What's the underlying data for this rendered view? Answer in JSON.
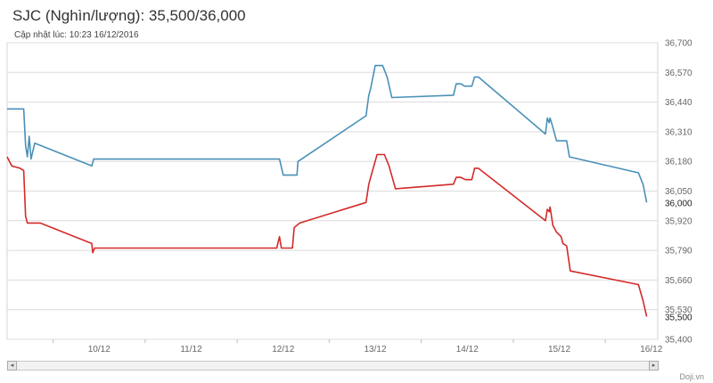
{
  "header": {
    "title": "SJC (Nghìn/lượng): 35,500/36,000",
    "updated": "Cập nhật lúc: 10:23 16/12/2016"
  },
  "brand": "Doji.vn",
  "scroll": {
    "left_icon": "◂",
    "right_icon": "▸"
  },
  "chart_data": {
    "type": "line",
    "title": "SJC (Nghìn/lượng): 35,500/36,000",
    "xlabel": "",
    "ylabel": "",
    "x_ticks": [
      "10/12",
      "11/12",
      "12/12",
      "13/12",
      "14/12",
      "15/12",
      "16/12"
    ],
    "x_range": [
      9.5,
      16.57
    ],
    "ylim": [
      35400,
      36700
    ],
    "y_ticks": [
      "35,400",
      "35,530",
      "35,660",
      "35,790",
      "35,920",
      "36,050",
      "36,180",
      "36,310",
      "36,440",
      "36,570",
      "36,700"
    ],
    "grid": true,
    "legend": "none",
    "last_values": {
      "sell": "36,000",
      "buy": "35,500"
    },
    "series": [
      {
        "color": "#4a90b8",
        "points": [
          [
            9.5,
            36410
          ],
          [
            9.68,
            36410
          ],
          [
            9.7,
            36250
          ],
          [
            9.72,
            36200
          ],
          [
            9.74,
            36290
          ],
          [
            9.76,
            36190
          ],
          [
            9.8,
            36260
          ],
          [
            10.42,
            36160
          ],
          [
            10.44,
            36190
          ],
          [
            12.46,
            36190
          ],
          [
            12.5,
            36120
          ],
          [
            12.65,
            36120
          ],
          [
            12.66,
            36180
          ],
          [
            12.7,
            36190
          ],
          [
            13.4,
            36380
          ],
          [
            13.43,
            36470
          ],
          [
            13.45,
            36500
          ],
          [
            13.5,
            36600
          ],
          [
            13.58,
            36600
          ],
          [
            13.63,
            36550
          ],
          [
            13.68,
            36460
          ],
          [
            14.35,
            36470
          ],
          [
            14.38,
            36520
          ],
          [
            14.43,
            36520
          ],
          [
            14.47,
            36510
          ],
          [
            14.55,
            36510
          ],
          [
            14.58,
            36550
          ],
          [
            14.62,
            36550
          ],
          [
            15.35,
            36300
          ],
          [
            15.37,
            36370
          ],
          [
            15.39,
            36350
          ],
          [
            15.4,
            36370
          ],
          [
            15.43,
            36330
          ],
          [
            15.47,
            36270
          ],
          [
            15.58,
            36270
          ],
          [
            15.61,
            36200
          ],
          [
            16.36,
            36130
          ],
          [
            16.41,
            36080
          ],
          [
            16.45,
            36000
          ]
        ]
      },
      {
        "color": "#d42a2a",
        "points": [
          [
            9.5,
            36200
          ],
          [
            9.55,
            36160
          ],
          [
            9.64,
            36150
          ],
          [
            9.68,
            36140
          ],
          [
            9.7,
            35940
          ],
          [
            9.72,
            35910
          ],
          [
            9.86,
            35910
          ],
          [
            10.42,
            35820
          ],
          [
            10.43,
            35780
          ],
          [
            10.45,
            35800
          ],
          [
            12.43,
            35800
          ],
          [
            12.46,
            35850
          ],
          [
            12.48,
            35800
          ],
          [
            12.6,
            35800
          ],
          [
            12.62,
            35890
          ],
          [
            12.68,
            35910
          ],
          [
            13.4,
            36000
          ],
          [
            13.43,
            36080
          ],
          [
            13.45,
            36110
          ],
          [
            13.52,
            36210
          ],
          [
            13.6,
            36210
          ],
          [
            13.65,
            36160
          ],
          [
            13.72,
            36060
          ],
          [
            14.35,
            36080
          ],
          [
            14.38,
            36110
          ],
          [
            14.43,
            36110
          ],
          [
            14.48,
            36100
          ],
          [
            14.55,
            36100
          ],
          [
            14.58,
            36150
          ],
          [
            14.62,
            36150
          ],
          [
            15.35,
            35920
          ],
          [
            15.37,
            35970
          ],
          [
            15.39,
            35960
          ],
          [
            15.4,
            35980
          ],
          [
            15.43,
            35900
          ],
          [
            15.47,
            35870
          ],
          [
            15.52,
            35850
          ],
          [
            15.54,
            35820
          ],
          [
            15.58,
            35810
          ],
          [
            15.62,
            35700
          ],
          [
            16.36,
            35640
          ],
          [
            16.41,
            35570
          ],
          [
            16.45,
            35500
          ]
        ]
      }
    ]
  }
}
